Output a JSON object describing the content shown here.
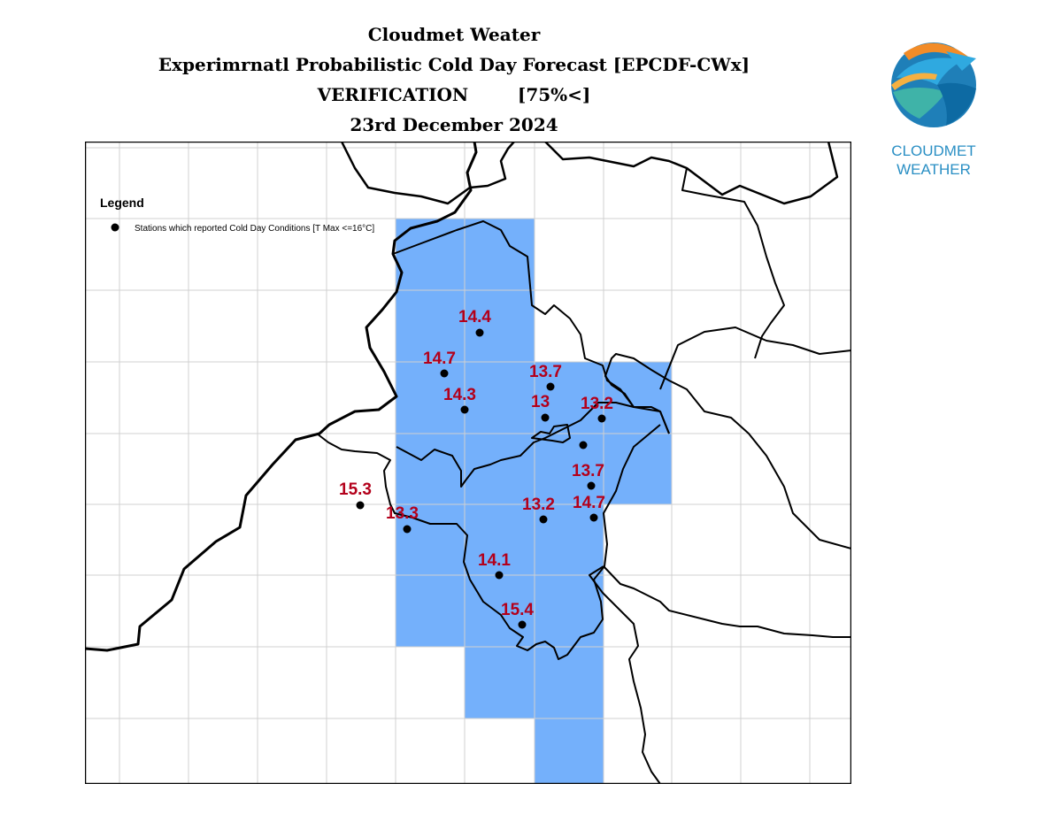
{
  "header": {
    "line1": "Cloudmet Weater",
    "line2": "Experimrnatl Probabilistic Cold Day Forecast [EPCDF-CWx]",
    "line3": "VERIFICATION        [75%<]",
    "line4": "23rd December 2024"
  },
  "logo": {
    "icon": "cloudmet-globe-logo",
    "line1": "CLOUDMET",
    "line2": "WEATHER"
  },
  "legend": {
    "title": "Legend",
    "items": [
      {
        "symbol": "black-dot",
        "label": "Stations which reported Cold Day Conditions [T Max <=16°C]"
      }
    ]
  },
  "colors": {
    "forecast_area": "#74b0fb",
    "value_label": "#b3001b",
    "station": "#000000",
    "grid": "#d0d0d0"
  },
  "stations": [
    {
      "value": "14.4"
    },
    {
      "value": "14.7"
    },
    {
      "value": "14.3"
    },
    {
      "value": "13.7"
    },
    {
      "value": "13"
    },
    {
      "value": "13.2"
    },
    {
      "value": ""
    },
    {
      "value": "13.7"
    },
    {
      "value": "13.2"
    },
    {
      "value": "14.7"
    },
    {
      "value": "15.3"
    },
    {
      "value": "13.3"
    },
    {
      "value": "14.1"
    },
    {
      "value": "15.4"
    }
  ]
}
